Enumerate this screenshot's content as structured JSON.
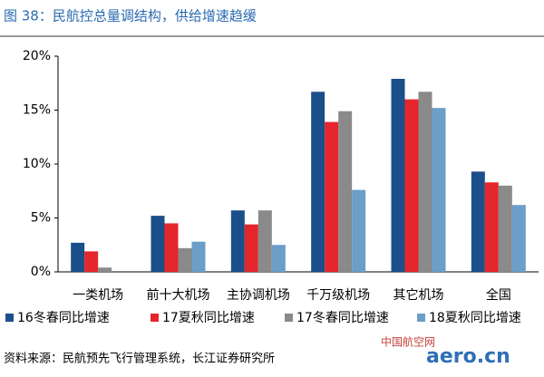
{
  "chart_data": {
    "type": "bar",
    "title": "图 38：民航控总量调结构，供给增速趋缓",
    "source": "资料来源：民航预先飞行管理系统，长江证券研究所",
    "watermark": [
      "中国航空网",
      "aero.cn"
    ],
    "categories": [
      "一类机场",
      "前十大机场",
      "主协调机场",
      "千万级机场",
      "其它机场",
      "全国"
    ],
    "series": [
      {
        "name": "16冬春同比增速",
        "color": "#1b4f8a",
        "values": [
          2.7,
          5.2,
          5.7,
          16.7,
          17.9,
          9.3
        ]
      },
      {
        "name": "17夏秋同比增速",
        "color": "#e4262c",
        "values": [
          1.9,
          4.5,
          4.4,
          13.9,
          16.0,
          8.3
        ]
      },
      {
        "name": "17冬春同比增速",
        "color": "#8a8a8a",
        "values": [
          0.4,
          2.2,
          5.7,
          14.9,
          16.7,
          8.0
        ]
      },
      {
        "name": "18夏秋同比增速",
        "color": "#6b9ec8",
        "values": [
          0,
          2.8,
          2.5,
          7.6,
          15.2,
          6.2
        ]
      }
    ],
    "ylim": [
      0,
      20
    ],
    "yticks": [
      {
        "value": 0,
        "label": "0%"
      },
      {
        "value": 5,
        "label": "5%"
      },
      {
        "value": 10,
        "label": "10%"
      },
      {
        "value": 15,
        "label": "15%"
      },
      {
        "value": 20,
        "label": "20%"
      }
    ],
    "grid": false
  }
}
